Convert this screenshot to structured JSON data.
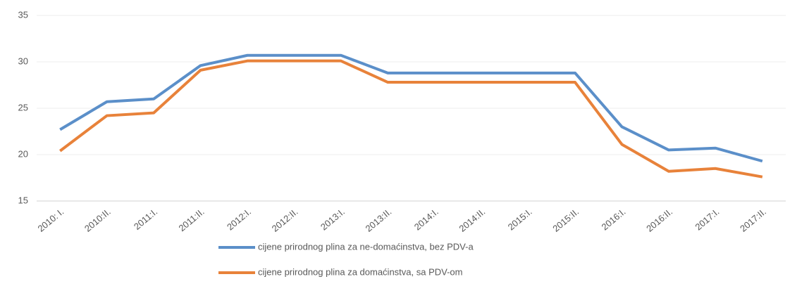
{
  "chart_data": {
    "type": "line",
    "categories": [
      "2010: I.",
      "2010:II.",
      "2011:I.",
      "2011:II.",
      "2012:I.",
      "2012:II.",
      "2013:I.",
      "2013:II.",
      "2014:I.",
      "2014:II.",
      "2015:I.",
      "2015:II.",
      "2016:I.",
      "2016:II.",
      "2017:I.",
      "2017:II."
    ],
    "series": [
      {
        "name": "cijene prirodnog plina za ne-domaćinstva, bez PDV-a",
        "color": "#5b8fc9",
        "values": [
          22.7,
          25.7,
          26.0,
          29.6,
          30.7,
          30.7,
          30.7,
          28.8,
          28.8,
          28.8,
          28.8,
          28.8,
          23.0,
          20.5,
          20.7,
          19.3
        ]
      },
      {
        "name": "cijene prirodnog plina za domaćinstva, sa PDV-om",
        "color": "#e8823a",
        "values": [
          20.4,
          24.2,
          24.5,
          29.1,
          30.1,
          30.1,
          30.1,
          27.8,
          27.8,
          27.8,
          27.8,
          27.8,
          21.1,
          18.2,
          18.5,
          17.6
        ]
      }
    ],
    "ylim": [
      15,
      35
    ],
    "yticks": [
      15,
      20,
      25,
      30,
      35
    ],
    "grid": true,
    "legend": "bottom"
  }
}
